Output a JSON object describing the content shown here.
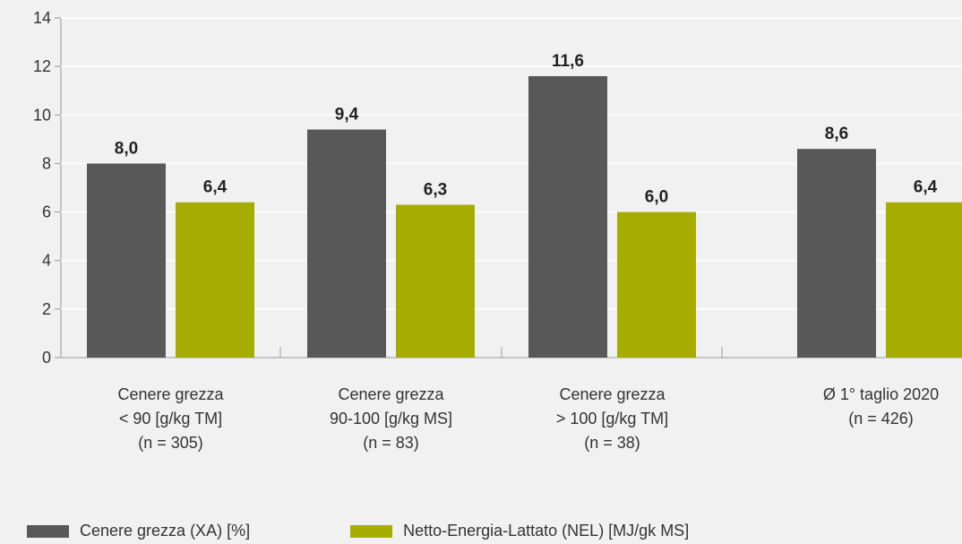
{
  "colors": {
    "series1": "#575857",
    "series2": "#a6ad00",
    "axis": "#999999",
    "text": "#333333"
  },
  "chart_data": {
    "type": "bar",
    "categories": [
      [
        "Cenere grezza",
        "< 90 [g/kg TM]",
        "(n = 305)"
      ],
      [
        "Cenere grezza",
        "90-100 [g/kg MS]",
        "(n = 83)"
      ],
      [
        "Cenere grezza",
        "> 100 [g/kg TM]",
        "(n = 38)"
      ],
      [
        "Ø 1° taglio 2020",
        "(n = 426)"
      ]
    ],
    "series": [
      {
        "name": "Cenere grezza (XA) [%]",
        "values": [
          8.0,
          9.4,
          11.6,
          8.6
        ],
        "labels": [
          "8,0",
          "9,4",
          "11,6",
          "8,6"
        ]
      },
      {
        "name": "Netto-Energia-Lattato (NEL) [MJ/gk MS]",
        "values": [
          6.4,
          6.3,
          6.0,
          6.4
        ],
        "labels": [
          "6,4",
          "6,3",
          "6,0",
          "6,4"
        ]
      }
    ],
    "ylim": [
      0,
      14
    ],
    "yticks": [
      0,
      2,
      4,
      6,
      8,
      10,
      12,
      14
    ],
    "grid": true,
    "legend_position": "bottom-left"
  }
}
